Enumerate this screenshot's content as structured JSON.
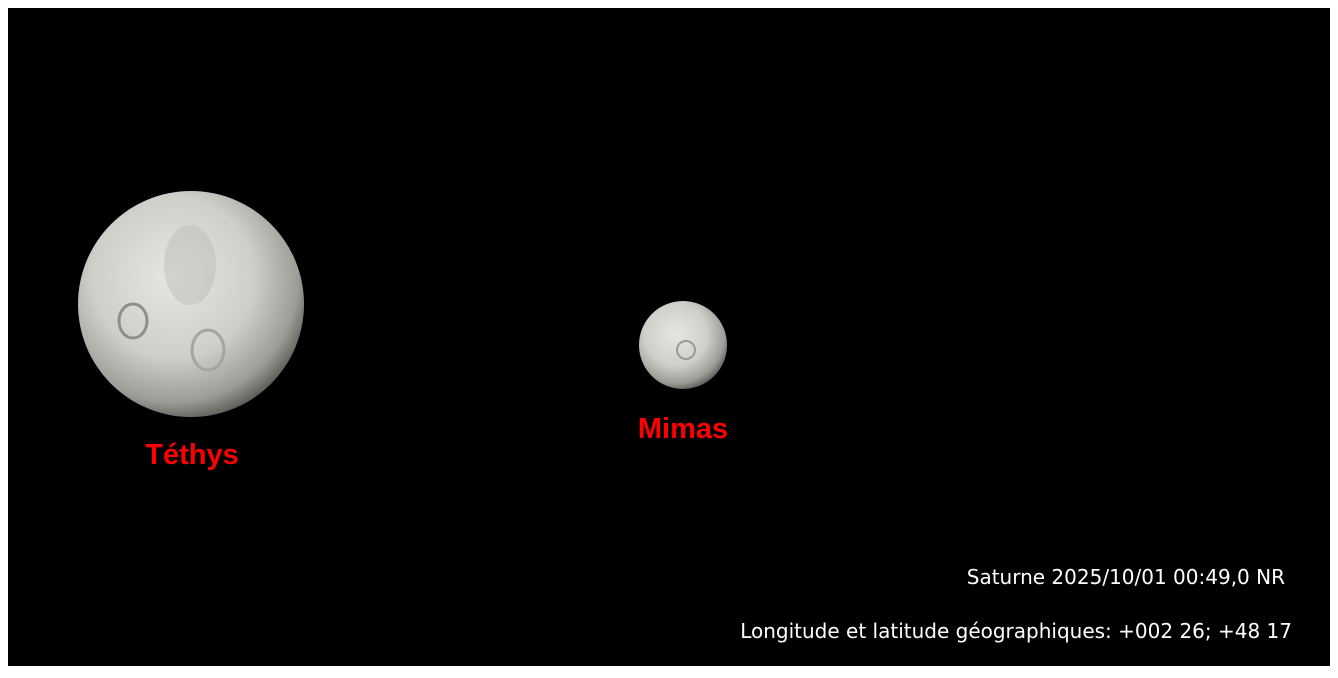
{
  "moons": [
    {
      "label": "Téthys"
    },
    {
      "label": "Mimas"
    }
  ],
  "info": {
    "line1": "Saturne 2025/10/01 00:49,0 NR",
    "line2": "Longitude et latitude géographiques: +002 26; +48 17"
  }
}
